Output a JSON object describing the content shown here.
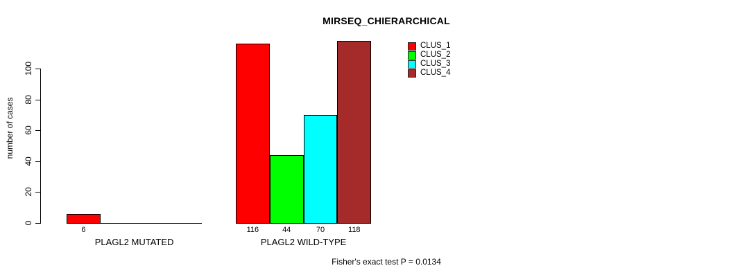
{
  "chart_data": {
    "type": "bar",
    "title": "MIRSEQ_CHIERARCHICAL",
    "ylabel": "number of cases",
    "xlabel": "",
    "categories": [
      "PLAGL2 MUTATED",
      "PLAGL2 WILD-TYPE"
    ],
    "series": [
      {
        "name": "CLUS_1",
        "color": "#ff0000",
        "values": [
          6,
          116
        ]
      },
      {
        "name": "CLUS_2",
        "color": "#00ff00",
        "values": [
          0,
          44
        ]
      },
      {
        "name": "CLUS_3",
        "color": "#00ffff",
        "values": [
          0,
          70
        ]
      },
      {
        "name": "CLUS_4",
        "color": "#a52a2a",
        "values": [
          0,
          118
        ]
      }
    ],
    "bar_value_labels_shown_for_nonzero_only": true,
    "yticks": [
      0,
      20,
      40,
      60,
      80,
      100
    ],
    "ylim": [
      0,
      120
    ],
    "grid": false,
    "legend_position": "top-right",
    "annotation": "Fisher's exact test P = 0.0134",
    "axis_color": "#000000",
    "bar_border_color": "#000000",
    "background_color": "#ffffff"
  }
}
